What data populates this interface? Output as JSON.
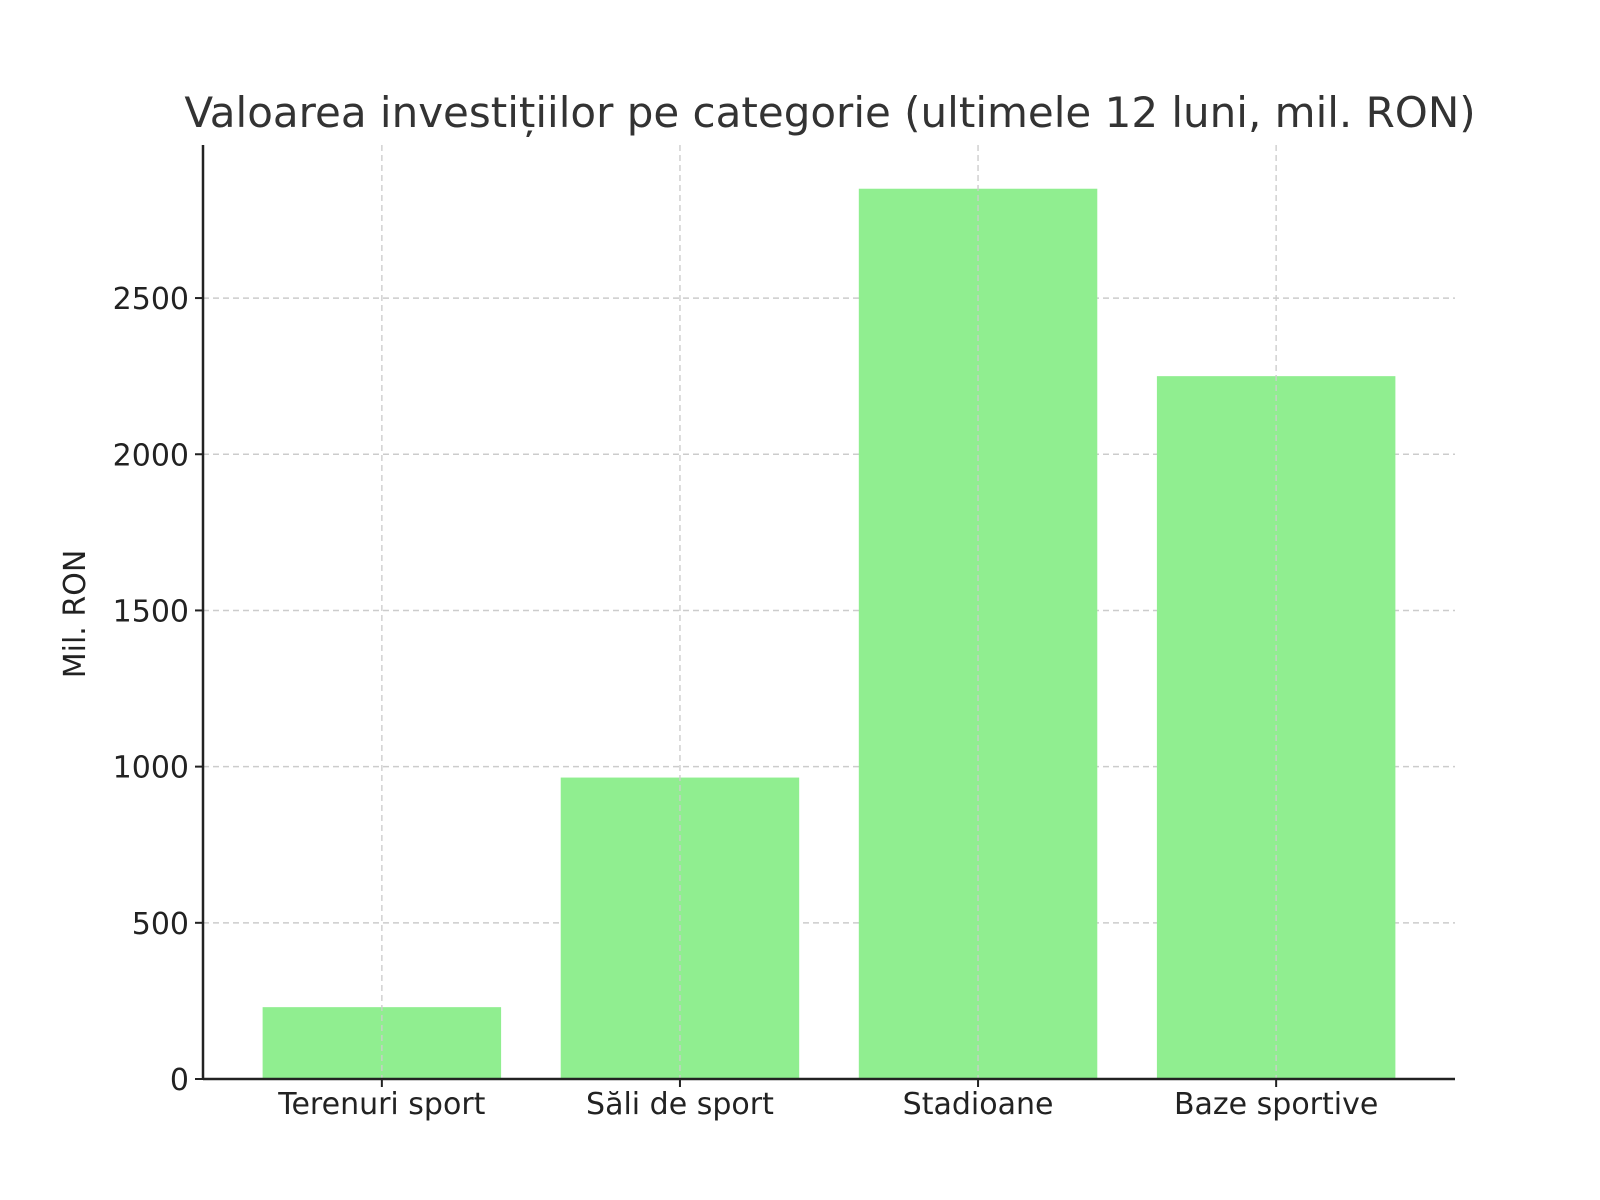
{
  "chart_data": {
    "type": "bar",
    "title": "Valoarea investițiilor pe categorie (ultimele 12 luni, mil. RON)",
    "xlabel": "",
    "ylabel": "Mil. RON",
    "categories": [
      "Terenuri sport",
      "Săli de sport",
      "Stadioane",
      "Baze sportive"
    ],
    "values": [
      230,
      965,
      2850,
      2250
    ],
    "ylim": [
      0,
      2990
    ],
    "yticks": [
      0,
      500,
      1000,
      1500,
      2000,
      2500
    ],
    "grid": true,
    "bar_color": "#90EE90",
    "axis_color": "#222222",
    "grid_color": "#cccccc"
  }
}
